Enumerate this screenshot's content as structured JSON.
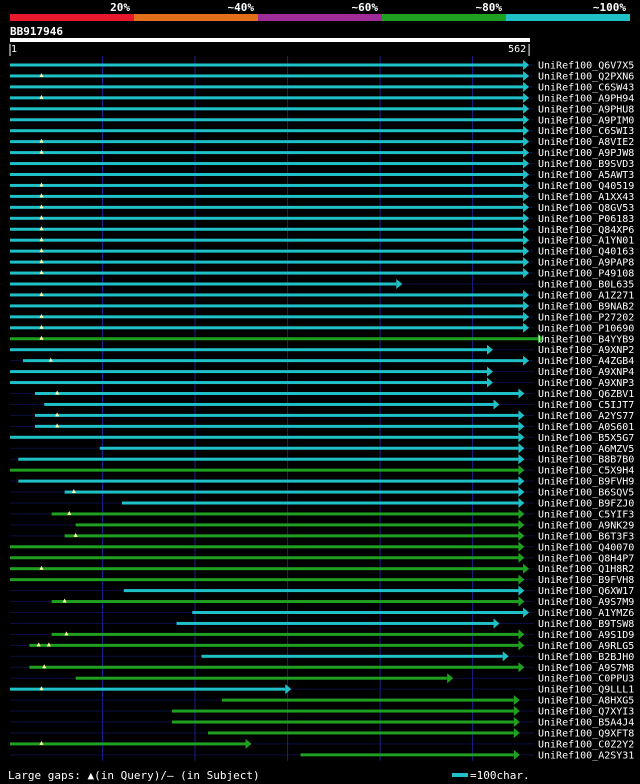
{
  "chart_data": {
    "type": "alignment-overview",
    "query": {
      "name": "BB917946",
      "start": 1,
      "length": 562
    },
    "identity_scale": [
      {
        "label": "20%",
        "color": "#e8192c"
      },
      {
        "label": "~40%",
        "color": "#e2701a"
      },
      {
        "label": "~60%",
        "color": "#a02c9a"
      },
      {
        "label": "~80%",
        "color": "#20a020"
      },
      {
        "label": "~100%",
        "color": "#20c0c8"
      }
    ],
    "colors": {
      "cyan": "#20c0c8",
      "green": "#20a020",
      "grid": "#1a2090",
      "mark": "#ffffaa"
    },
    "footer": {
      "gaps_text": "Large gaps: ▲(in Query)/– (in Subject)",
      "scale_text": "=100char."
    },
    "hits": [
      {
        "name": "UniRef100_Q6V7X5",
        "start": 1,
        "end": 562,
        "color": "cyan",
        "gaps": []
      },
      {
        "name": "UniRef100_Q2PXN6",
        "start": 1,
        "end": 562,
        "color": "cyan",
        "gaps": [
          35
        ]
      },
      {
        "name": "UniRef100_C6SW43",
        "start": 1,
        "end": 562,
        "color": "cyan",
        "gaps": []
      },
      {
        "name": "UniRef100_A9PH94",
        "start": 1,
        "end": 562,
        "color": "cyan",
        "gaps": [
          35
        ]
      },
      {
        "name": "UniRef100_A9PHU8",
        "start": 1,
        "end": 562,
        "color": "cyan",
        "gaps": []
      },
      {
        "name": "UniRef100_A9PIM0",
        "start": 1,
        "end": 562,
        "color": "cyan",
        "gaps": []
      },
      {
        "name": "UniRef100_C6SWI3",
        "start": 1,
        "end": 562,
        "color": "cyan",
        "gaps": []
      },
      {
        "name": "UniRef100_A8VIE2",
        "start": 1,
        "end": 562,
        "color": "cyan",
        "gaps": [
          35
        ]
      },
      {
        "name": "UniRef100_A9PJW8",
        "start": 1,
        "end": 562,
        "color": "cyan",
        "gaps": [
          35
        ]
      },
      {
        "name": "UniRef100_B9SVD3",
        "start": 1,
        "end": 562,
        "color": "cyan",
        "gaps": []
      },
      {
        "name": "UniRef100_A5AWT3",
        "start": 1,
        "end": 562,
        "color": "cyan",
        "gaps": []
      },
      {
        "name": "UniRef100_Q40519",
        "start": 1,
        "end": 562,
        "color": "cyan",
        "gaps": [
          35
        ]
      },
      {
        "name": "UniRef100_A1XX43",
        "start": 1,
        "end": 562,
        "color": "cyan",
        "gaps": [
          35
        ]
      },
      {
        "name": "UniRef100_Q8GV53",
        "start": 1,
        "end": 562,
        "color": "cyan",
        "gaps": [
          35
        ]
      },
      {
        "name": "UniRef100_P06183",
        "start": 1,
        "end": 562,
        "color": "cyan",
        "gaps": [
          35
        ]
      },
      {
        "name": "UniRef100_Q84XP6",
        "start": 1,
        "end": 562,
        "color": "cyan",
        "gaps": [
          35
        ]
      },
      {
        "name": "UniRef100_A1YN01",
        "start": 1,
        "end": 562,
        "color": "cyan",
        "gaps": [
          35
        ]
      },
      {
        "name": "UniRef100_Q40163",
        "start": 1,
        "end": 562,
        "color": "cyan",
        "gaps": [
          35
        ]
      },
      {
        "name": "UniRef100_A9PAP8",
        "start": 1,
        "end": 562,
        "color": "cyan",
        "gaps": [
          35
        ]
      },
      {
        "name": "UniRef100_P49108",
        "start": 1,
        "end": 562,
        "color": "cyan",
        "gaps": [
          35
        ]
      },
      {
        "name": "UniRef100_B0L635",
        "start": 1,
        "end": 425,
        "color": "cyan",
        "gaps": []
      },
      {
        "name": "UniRef100_A1Z271",
        "start": 1,
        "end": 562,
        "color": "cyan",
        "gaps": [
          35
        ]
      },
      {
        "name": "UniRef100_B9NAB2",
        "start": 1,
        "end": 562,
        "color": "cyan",
        "gaps": []
      },
      {
        "name": "UniRef100_P27202",
        "start": 1,
        "end": 562,
        "color": "cyan",
        "gaps": [
          35
        ]
      },
      {
        "name": "UniRef100_P10690",
        "start": 1,
        "end": 562,
        "color": "cyan",
        "gaps": [
          35
        ]
      },
      {
        "name": "UniRef100_B4YYB9",
        "start": 1,
        "end": 578,
        "color": "green",
        "gaps": [
          35
        ]
      },
      {
        "name": "UniRef100_A9XNP2",
        "start": 1,
        "end": 523,
        "color": "cyan",
        "gaps": []
      },
      {
        "name": "UniRef100_A4ZGB4",
        "start": 15,
        "end": 562,
        "color": "cyan",
        "gaps": [
          45
        ]
      },
      {
        "name": "UniRef100_A9XNP4",
        "start": 1,
        "end": 523,
        "color": "cyan",
        "gaps": []
      },
      {
        "name": "UniRef100_A9XNP3",
        "start": 1,
        "end": 523,
        "color": "cyan",
        "gaps": []
      },
      {
        "name": "UniRef100_Q6ZBV1",
        "start": 28,
        "end": 557,
        "color": "cyan",
        "gaps": [
          52
        ]
      },
      {
        "name": "UniRef100_C5IJT7",
        "start": 38,
        "end": 530,
        "color": "cyan",
        "gaps": []
      },
      {
        "name": "UniRef100_A2YS77",
        "start": 28,
        "end": 557,
        "color": "cyan",
        "gaps": [
          52
        ]
      },
      {
        "name": "UniRef100_A0S601",
        "start": 28,
        "end": 557,
        "color": "cyan",
        "gaps": [
          52
        ]
      },
      {
        "name": "UniRef100_B5X5G7",
        "start": 1,
        "end": 557,
        "color": "cyan",
        "gaps": []
      },
      {
        "name": "UniRef100_A6MZV5",
        "start": 98,
        "end": 557,
        "color": "cyan",
        "gaps": []
      },
      {
        "name": "UniRef100_B8B7B0",
        "start": 10,
        "end": 557,
        "color": "cyan",
        "gaps": []
      },
      {
        "name": "UniRef100_C5X9H4",
        "start": 1,
        "end": 557,
        "color": "green",
        "gaps": []
      },
      {
        "name": "UniRef100_B9FVH9",
        "start": 10,
        "end": 557,
        "color": "cyan",
        "gaps": []
      },
      {
        "name": "UniRef100_B6SQV5",
        "start": 60,
        "end": 557,
        "color": "cyan",
        "gaps": [
          70
        ]
      },
      {
        "name": "UniRef100_B9FZJ0",
        "start": 122,
        "end": 557,
        "color": "cyan",
        "gaps": []
      },
      {
        "name": "UniRef100_C5YIF3",
        "start": 46,
        "end": 557,
        "color": "green",
        "gaps": [
          65
        ]
      },
      {
        "name": "UniRef100_A9NK29",
        "start": 72,
        "end": 557,
        "color": "green",
        "gaps": []
      },
      {
        "name": "UniRef100_B6T3F3",
        "start": 60,
        "end": 557,
        "color": "green",
        "gaps": [
          72
        ]
      },
      {
        "name": "UniRef100_Q40070",
        "start": 1,
        "end": 557,
        "color": "green",
        "gaps": []
      },
      {
        "name": "UniRef100_Q8H4P7",
        "start": 1,
        "end": 557,
        "color": "green",
        "gaps": []
      },
      {
        "name": "UniRef100_Q1H8R2",
        "start": 1,
        "end": 562,
        "color": "green",
        "gaps": [
          35
        ]
      },
      {
        "name": "UniRef100_B9FVH8",
        "start": 1,
        "end": 557,
        "color": "green",
        "gaps": []
      },
      {
        "name": "UniRef100_Q6XW17",
        "start": 124,
        "end": 557,
        "color": "cyan",
        "gaps": []
      },
      {
        "name": "UniRef100_A9S7M9",
        "start": 46,
        "end": 557,
        "color": "green",
        "gaps": [
          60
        ]
      },
      {
        "name": "UniRef100_A1YMZ6",
        "start": 198,
        "end": 562,
        "color": "cyan",
        "gaps": []
      },
      {
        "name": "UniRef100_B9TSW8",
        "start": 181,
        "end": 530,
        "color": "cyan",
        "gaps": []
      },
      {
        "name": "UniRef100_A9S1D9",
        "start": 46,
        "end": 557,
        "color": "green",
        "gaps": [
          62
        ]
      },
      {
        "name": "UniRef100_A9RLG5",
        "start": 22,
        "end": 557,
        "color": "green",
        "gaps": [
          32,
          43
        ]
      },
      {
        "name": "UniRef100_B2BJH0",
        "start": 208,
        "end": 540,
        "color": "cyan",
        "gaps": []
      },
      {
        "name": "UniRef100_A9S7M8",
        "start": 22,
        "end": 557,
        "color": "green",
        "gaps": [
          38
        ]
      },
      {
        "name": "UniRef100_C0PPU3",
        "start": 72,
        "end": 480,
        "color": "green",
        "gaps": []
      },
      {
        "name": "UniRef100_Q9LLL1",
        "start": 1,
        "end": 305,
        "color": "cyan",
        "gaps": [
          35
        ]
      },
      {
        "name": "UniRef100_A8HXG5",
        "start": 230,
        "end": 552,
        "color": "green",
        "gaps": []
      },
      {
        "name": "UniRef100_Q7XYI3",
        "start": 176,
        "end": 552,
        "color": "green",
        "gaps": []
      },
      {
        "name": "UniRef100_B5A4J4",
        "start": 176,
        "end": 552,
        "color": "green",
        "gaps": []
      },
      {
        "name": "UniRef100_Q9XFT8",
        "start": 215,
        "end": 552,
        "color": "green",
        "gaps": []
      },
      {
        "name": "UniRef100_C0Z2Y2",
        "start": 1,
        "end": 262,
        "color": "green",
        "gaps": [
          35
        ]
      },
      {
        "name": "UniRef100_A2SY31",
        "start": 315,
        "end": 552,
        "color": "green",
        "gaps": []
      }
    ]
  }
}
